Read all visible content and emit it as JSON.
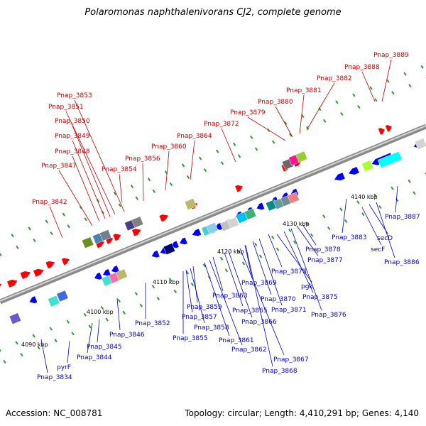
{
  "title": "Polaromonas naphthalenivorans CJ2, complete genome",
  "accession": "Accession: NC_008781",
  "topology": "Topology: circular; Length: 4,410,291 bp; Genes: 4,140",
  "colors": {
    "forward_gene": "#ff0000",
    "reverse_gene": "#0000ff",
    "forward_label": "#cc0000",
    "reverse_label": "#0000cc",
    "backbone": "#8a8a8a",
    "tick": "#2f9a2f"
  },
  "scale_labels": [
    "4090 kbp",
    "4100 kbp",
    "4110 kbp",
    "4120 kbp",
    "4130 kbp",
    "4140 kbp"
  ],
  "forward_labels": [
    "Pnap_3842",
    "Pnap_3847",
    "Pnap_3848",
    "Pnap_3849",
    "Pnap_3850",
    "Pnap_3851",
    "Pnap_3853",
    "Pnap_3854",
    "Pnap_3856",
    "Pnap_3860",
    "Pnap_3864",
    "Pnap_3872",
    "Pnap_3879",
    "Pnap_3880",
    "Pnap_3881",
    "Pnap_3882",
    "Pnap_3888",
    "Pnap_3889"
  ],
  "reverse_labels": [
    "Pnap_3834",
    "pyrF",
    "Pnap_3844",
    "Pnap_3845",
    "Pnap_3846",
    "Pnap_3852",
    "Pnap_3855",
    "Pnap_3857",
    "Pnap_3858",
    "Pnap_3859",
    "Pnap_3861",
    "Pnap_3862",
    "Pnap_3863",
    "Pnap_3865",
    "Pnap_3866",
    "Pnap_3867",
    "Pnap_3868",
    "Pnap_3869",
    "Pnap_3870",
    "Pnap_3871",
    "Pnap_3873",
    "pgk",
    "Pnap_3875",
    "Pnap_3876",
    "Pnap_3877",
    "Pnap_3878",
    "Pnap_3883",
    "secF",
    "secD",
    "Pnap_3886",
    "Pnap_3887"
  ]
}
